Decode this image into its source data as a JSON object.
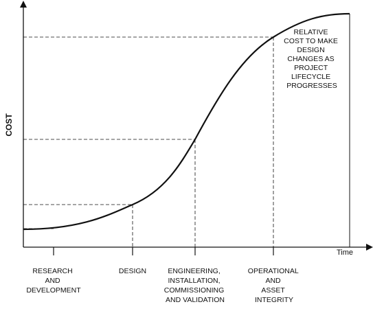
{
  "axes": {
    "y_label": "COST",
    "x_label": "Time"
  },
  "annotation": [
    "RELATIVE",
    "COST TO MAKE",
    "DESIGN",
    "CHANGES AS",
    "PROJECT",
    "LIFECYCLE",
    "PROGRESSES"
  ],
  "phases": [
    {
      "lines": [
        "RESEARCH",
        "AND",
        "DEVELOPMENT"
      ]
    },
    {
      "lines": [
        "DESIGN"
      ]
    },
    {
      "lines": [
        "ENGINEERING,",
        "INSTALLATION,",
        "COMMISSIONING",
        "AND VALIDATION"
      ]
    },
    {
      "lines": [
        "OPERATIONAL",
        "AND",
        "ASSET",
        "INTEGRITY"
      ]
    }
  ],
  "colors": {
    "line": "#111111",
    "background": "#ffffff"
  }
}
